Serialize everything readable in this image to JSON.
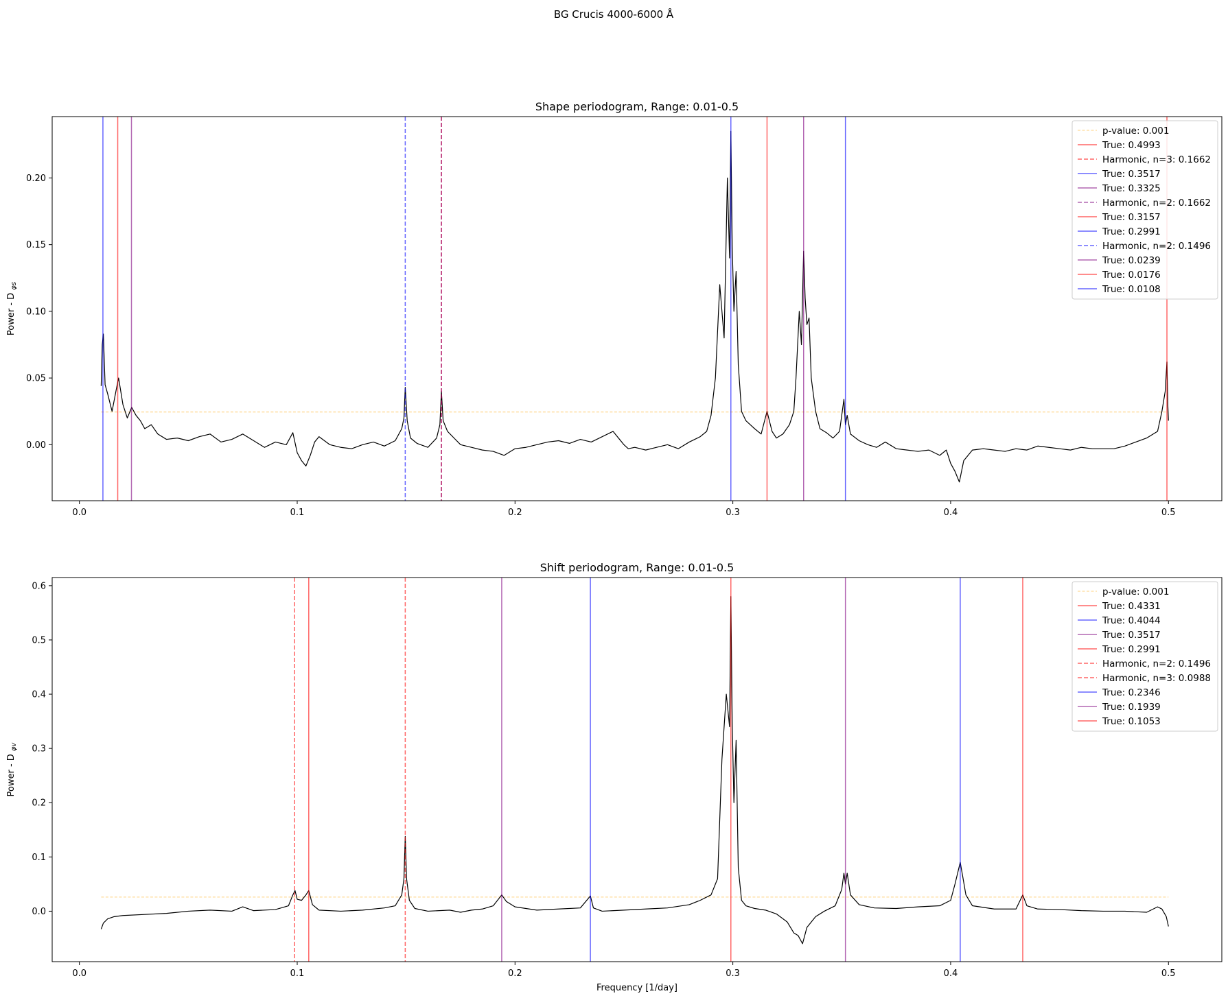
{
  "figure": {
    "suptitle": "BG Crucis 4000-6000 Å"
  },
  "chart_data": [
    {
      "type": "line",
      "title": "Shape periodogram, Range: 0.01-0.5",
      "xlabel": "",
      "ylabel": "Power - D_φs",
      "ylabel_main": "Power - D",
      "ylabel_sub": "φs",
      "xlim": [
        -0.0125,
        0.5245
      ],
      "ylim": [
        -0.042,
        0.246
      ],
      "xticks": [
        0.0,
        0.1,
        0.2,
        0.3,
        0.4,
        0.5
      ],
      "xtick_labels": [
        "0.0",
        "0.1",
        "0.2",
        "0.3",
        "0.4",
        "0.5"
      ],
      "yticks": [
        0.0,
        0.05,
        0.1,
        0.15,
        0.2
      ],
      "ytick_labels": [
        "0.00",
        "0.05",
        "0.10",
        "0.15",
        "0.20"
      ],
      "grid": false,
      "legend_position": "top-right",
      "threshold": {
        "label": "p-value: 0.001",
        "y": 0.0245,
        "x_range": [
          0.01,
          0.5
        ],
        "color": "#ffa500"
      },
      "vlines": [
        {
          "label": "True: 0.4993",
          "x": 0.4993,
          "color": "#ff0000",
          "style": "solid"
        },
        {
          "label": "Harmonic, n=3: 0.1662",
          "x": 0.1662,
          "color": "#ff0000",
          "style": "dashed"
        },
        {
          "label": "True: 0.3517",
          "x": 0.3517,
          "color": "#0000ff",
          "style": "solid"
        },
        {
          "label": "True: 0.3325",
          "x": 0.3325,
          "color": "#800080",
          "style": "solid"
        },
        {
          "label": "Harmonic, n=2: 0.1662",
          "x": 0.1662,
          "color": "#800080",
          "style": "dashed"
        },
        {
          "label": "True: 0.3157",
          "x": 0.3157,
          "color": "#ff0000",
          "style": "solid"
        },
        {
          "label": "True: 0.2991",
          "x": 0.2991,
          "color": "#0000ff",
          "style": "solid"
        },
        {
          "label": "Harmonic, n=2: 0.1496",
          "x": 0.1496,
          "color": "#0000ff",
          "style": "dashed"
        },
        {
          "label": "True: 0.0239",
          "x": 0.0239,
          "color": "#800080",
          "style": "solid"
        },
        {
          "label": "True: 0.0176",
          "x": 0.0176,
          "color": "#ff0000",
          "style": "solid"
        },
        {
          "label": "True: 0.0108",
          "x": 0.0108,
          "color": "#0000ff",
          "style": "solid"
        }
      ],
      "series": [
        {
          "color": "#000000",
          "x": [
            0.01,
            0.0105,
            0.011,
            0.0118,
            0.013,
            0.015,
            0.017,
            0.018,
            0.02,
            0.022,
            0.024,
            0.026,
            0.028,
            0.03,
            0.033,
            0.036,
            0.04,
            0.045,
            0.05,
            0.055,
            0.06,
            0.065,
            0.07,
            0.075,
            0.08,
            0.085,
            0.09,
            0.095,
            0.098,
            0.1,
            0.102,
            0.104,
            0.106,
            0.108,
            0.11,
            0.115,
            0.12,
            0.125,
            0.13,
            0.135,
            0.14,
            0.145,
            0.148,
            0.149,
            0.1496,
            0.1505,
            0.152,
            0.155,
            0.16,
            0.164,
            0.1655,
            0.1662,
            0.167,
            0.169,
            0.172,
            0.175,
            0.18,
            0.185,
            0.19,
            0.195,
            0.2,
            0.205,
            0.21,
            0.215,
            0.22,
            0.225,
            0.23,
            0.235,
            0.24,
            0.245,
            0.248,
            0.25,
            0.252,
            0.255,
            0.26,
            0.265,
            0.27,
            0.275,
            0.28,
            0.285,
            0.288,
            0.29,
            0.292,
            0.294,
            0.296,
            0.2975,
            0.2985,
            0.2991,
            0.2997,
            0.3005,
            0.3015,
            0.3025,
            0.304,
            0.306,
            0.308,
            0.31,
            0.313,
            0.3157,
            0.318,
            0.32,
            0.323,
            0.326,
            0.328,
            0.329,
            0.3305,
            0.3315,
            0.3325,
            0.3332,
            0.334,
            0.335,
            0.336,
            0.338,
            0.34,
            0.343,
            0.346,
            0.349,
            0.351,
            0.3517,
            0.3525,
            0.354,
            0.358,
            0.362,
            0.366,
            0.37,
            0.375,
            0.38,
            0.385,
            0.39,
            0.395,
            0.398,
            0.4,
            0.402,
            0.404,
            0.406,
            0.408,
            0.41,
            0.415,
            0.42,
            0.425,
            0.43,
            0.435,
            0.44,
            0.445,
            0.45,
            0.455,
            0.46,
            0.465,
            0.47,
            0.475,
            0.48,
            0.485,
            0.49,
            0.495,
            0.497,
            0.4985,
            0.4993,
            0.4997,
            0.5
          ],
          "y": [
            0.044,
            0.075,
            0.083,
            0.045,
            0.038,
            0.025,
            0.042,
            0.05,
            0.03,
            0.02,
            0.028,
            0.022,
            0.018,
            0.012,
            0.015,
            0.008,
            0.004,
            0.005,
            0.003,
            0.006,
            0.008,
            0.002,
            0.004,
            0.008,
            0.003,
            -0.002,
            0.002,
            0.0,
            0.009,
            -0.006,
            -0.012,
            -0.016,
            -0.008,
            0.002,
            0.006,
            0.0,
            -0.002,
            -0.003,
            0.0,
            0.002,
            -0.001,
            0.003,
            0.012,
            0.02,
            0.043,
            0.018,
            0.005,
            0.001,
            -0.002,
            0.005,
            0.015,
            0.04,
            0.018,
            0.01,
            0.005,
            0.0,
            -0.002,
            -0.004,
            -0.005,
            -0.008,
            -0.003,
            -0.002,
            0.0,
            0.002,
            0.003,
            0.001,
            0.004,
            0.002,
            0.006,
            0.01,
            0.004,
            0.0,
            -0.003,
            -0.002,
            -0.004,
            -0.002,
            0.0,
            -0.003,
            0.002,
            0.006,
            0.01,
            0.022,
            0.05,
            0.12,
            0.08,
            0.2,
            0.14,
            0.235,
            0.15,
            0.1,
            0.13,
            0.06,
            0.025,
            0.018,
            0.015,
            0.012,
            0.008,
            0.025,
            0.01,
            0.005,
            0.008,
            0.015,
            0.025,
            0.05,
            0.1,
            0.075,
            0.145,
            0.11,
            0.09,
            0.095,
            0.05,
            0.025,
            0.012,
            0.009,
            0.005,
            0.01,
            0.034,
            0.015,
            0.022,
            0.008,
            0.003,
            0.0,
            -0.002,
            0.002,
            -0.003,
            -0.004,
            -0.005,
            -0.004,
            -0.008,
            -0.004,
            -0.014,
            -0.02,
            -0.028,
            -0.012,
            -0.008,
            -0.004,
            -0.003,
            -0.004,
            -0.005,
            -0.003,
            -0.004,
            -0.001,
            -0.002,
            -0.003,
            -0.004,
            -0.002,
            -0.003,
            -0.003,
            -0.003,
            -0.001,
            0.002,
            0.005,
            0.01,
            0.025,
            0.04,
            0.062,
            0.03,
            0.018
          ]
        }
      ]
    },
    {
      "type": "line",
      "title": "Shift periodogram, Range: 0.01-0.5",
      "xlabel": "Frequency [1/day]",
      "ylabel": "Power - D_φv",
      "ylabel_main": "Power - D",
      "ylabel_sub": "φv",
      "xlim": [
        -0.0125,
        0.5245
      ],
      "ylim": [
        -0.093,
        0.615
      ],
      "xticks": [
        0.0,
        0.1,
        0.2,
        0.3,
        0.4,
        0.5
      ],
      "xtick_labels": [
        "0.0",
        "0.1",
        "0.2",
        "0.3",
        "0.4",
        "0.5"
      ],
      "yticks": [
        0.0,
        0.1,
        0.2,
        0.3,
        0.4,
        0.5,
        0.6
      ],
      "ytick_labels": [
        "0.0",
        "0.1",
        "0.2",
        "0.3",
        "0.4",
        "0.5",
        "0.6"
      ],
      "grid": false,
      "legend_position": "top-right",
      "threshold": {
        "label": "p-value: 0.001",
        "y": 0.026,
        "x_range": [
          0.01,
          0.5
        ],
        "color": "#ffa500"
      },
      "vlines": [
        {
          "label": "True: 0.4331",
          "x": 0.4331,
          "color": "#ff0000",
          "style": "solid"
        },
        {
          "label": "True: 0.4044",
          "x": 0.4044,
          "color": "#0000ff",
          "style": "solid"
        },
        {
          "label": "True: 0.3517",
          "x": 0.3517,
          "color": "#800080",
          "style": "solid"
        },
        {
          "label": "True: 0.2991",
          "x": 0.2991,
          "color": "#ff0000",
          "style": "solid"
        },
        {
          "label": "Harmonic, n=2: 0.1496",
          "x": 0.1496,
          "color": "#ff0000",
          "style": "dashed"
        },
        {
          "label": "Harmonic, n=3: 0.0988",
          "x": 0.0988,
          "color": "#ff0000",
          "style": "dashed"
        },
        {
          "label": "True: 0.2346",
          "x": 0.2346,
          "color": "#0000ff",
          "style": "solid"
        },
        {
          "label": "True: 0.1939",
          "x": 0.1939,
          "color": "#800080",
          "style": "solid"
        },
        {
          "label": "True: 0.1053",
          "x": 0.1053,
          "color": "#ff0000",
          "style": "solid"
        }
      ],
      "series": [
        {
          "color": "#000000",
          "x": [
            0.01,
            0.011,
            0.013,
            0.016,
            0.02,
            0.03,
            0.04,
            0.05,
            0.06,
            0.07,
            0.075,
            0.08,
            0.09,
            0.096,
            0.098,
            0.099,
            0.1,
            0.102,
            0.104,
            0.1053,
            0.107,
            0.11,
            0.12,
            0.13,
            0.14,
            0.145,
            0.148,
            0.149,
            0.1496,
            0.1502,
            0.1515,
            0.154,
            0.16,
            0.17,
            0.175,
            0.18,
            0.185,
            0.19,
            0.1939,
            0.196,
            0.2,
            0.21,
            0.22,
            0.23,
            0.2346,
            0.236,
            0.24,
            0.25,
            0.26,
            0.27,
            0.28,
            0.285,
            0.29,
            0.293,
            0.295,
            0.297,
            0.2985,
            0.2991,
            0.2997,
            0.3005,
            0.3015,
            0.3025,
            0.304,
            0.306,
            0.31,
            0.315,
            0.32,
            0.325,
            0.328,
            0.33,
            0.332,
            0.334,
            0.338,
            0.342,
            0.347,
            0.35,
            0.351,
            0.3517,
            0.3525,
            0.354,
            0.358,
            0.365,
            0.375,
            0.385,
            0.395,
            0.4,
            0.402,
            0.4035,
            0.4044,
            0.4055,
            0.407,
            0.41,
            0.42,
            0.43,
            0.4331,
            0.435,
            0.44,
            0.45,
            0.46,
            0.47,
            0.48,
            0.49,
            0.495,
            0.497,
            0.499,
            0.5
          ],
          "y": [
            -0.033,
            -0.022,
            -0.014,
            -0.01,
            -0.008,
            -0.006,
            -0.004,
            0.0,
            0.002,
            0.0,
            0.008,
            0.001,
            0.003,
            0.01,
            0.03,
            0.038,
            0.022,
            0.02,
            0.03,
            0.038,
            0.012,
            0.002,
            0.0,
            0.002,
            0.006,
            0.01,
            0.03,
            0.06,
            0.138,
            0.06,
            0.02,
            0.005,
            0.0,
            0.002,
            -0.002,
            0.002,
            0.004,
            0.01,
            0.03,
            0.018,
            0.008,
            0.002,
            0.004,
            0.006,
            0.028,
            0.006,
            0.0,
            0.002,
            0.004,
            0.006,
            0.012,
            0.02,
            0.03,
            0.06,
            0.28,
            0.4,
            0.34,
            0.58,
            0.35,
            0.2,
            0.315,
            0.08,
            0.02,
            0.01,
            0.005,
            0.002,
            -0.005,
            -0.02,
            -0.04,
            -0.045,
            -0.06,
            -0.03,
            -0.01,
            0.0,
            0.01,
            0.04,
            0.07,
            0.05,
            0.07,
            0.03,
            0.012,
            0.006,
            0.005,
            0.008,
            0.01,
            0.02,
            0.05,
            0.075,
            0.09,
            0.065,
            0.03,
            0.01,
            0.004,
            0.004,
            0.03,
            0.01,
            0.004,
            0.003,
            0.001,
            0.0,
            0.0,
            -0.002,
            0.008,
            0.004,
            -0.01,
            -0.028
          ]
        }
      ]
    }
  ]
}
